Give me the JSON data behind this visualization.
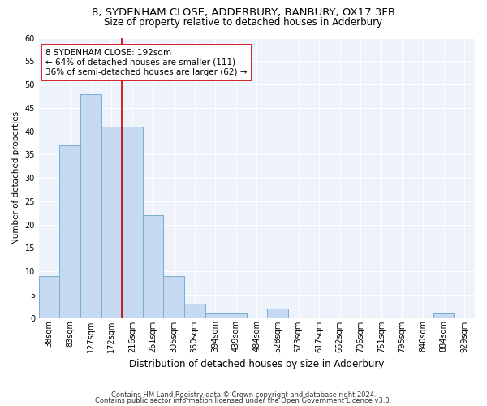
{
  "title": "8, SYDENHAM CLOSE, ADDERBURY, BANBURY, OX17 3FB",
  "subtitle": "Size of property relative to detached houses in Adderbury",
  "xlabel": "Distribution of detached houses by size in Adderbury",
  "ylabel": "Number of detached properties",
  "bin_labels": [
    "38sqm",
    "83sqm",
    "127sqm",
    "172sqm",
    "216sqm",
    "261sqm",
    "305sqm",
    "350sqm",
    "394sqm",
    "439sqm",
    "484sqm",
    "528sqm",
    "573sqm",
    "617sqm",
    "662sqm",
    "706sqm",
    "751sqm",
    "795sqm",
    "840sqm",
    "884sqm",
    "929sqm"
  ],
  "bar_values": [
    9,
    37,
    48,
    41,
    41,
    22,
    9,
    3,
    1,
    1,
    0,
    2,
    0,
    0,
    0,
    0,
    0,
    0,
    0,
    1,
    0
  ],
  "bar_color": "#c5d9f0",
  "bar_edge_color": "#7aadd4",
  "vline_x": 3.5,
  "vline_color": "#cc0000",
  "annotation_line1": "8 SYDENHAM CLOSE: 192sqm",
  "annotation_line2": "← 64% of detached houses are smaller (111)",
  "annotation_line3": "36% of semi-detached houses are larger (62) →",
  "annotation_box_color": "#ffffff",
  "annotation_box_edge": "#cc0000",
  "ylim": [
    0,
    60
  ],
  "yticks": [
    0,
    5,
    10,
    15,
    20,
    25,
    30,
    35,
    40,
    45,
    50,
    55,
    60
  ],
  "footer1": "Contains HM Land Registry data © Crown copyright and database right 2024.",
  "footer2": "Contains public sector information licensed under the Open Government Licence v3.0.",
  "bg_color": "#eef2fa",
  "title_fontsize": 9.5,
  "subtitle_fontsize": 8.5,
  "ylabel_fontsize": 7.5,
  "xlabel_fontsize": 8.5,
  "tick_fontsize": 7,
  "annot_fontsize": 7.5,
  "footer_fontsize": 6
}
